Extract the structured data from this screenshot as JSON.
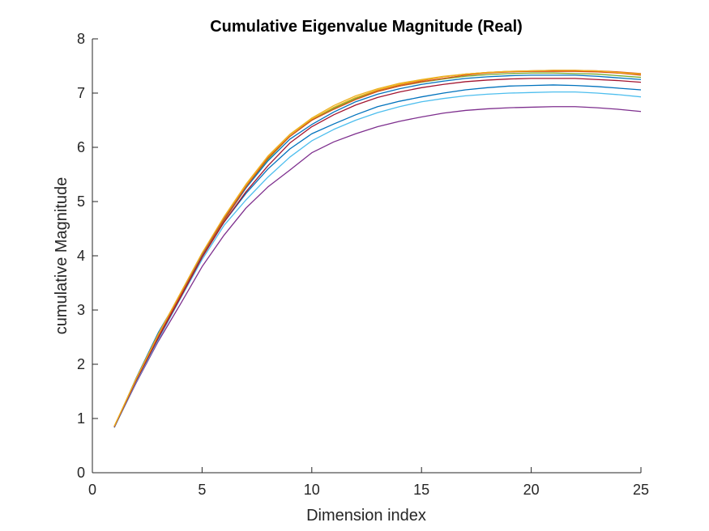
{
  "chart_data": {
    "type": "line",
    "title": "Cumulative Eigenvalue Magnitude (Real)",
    "xlabel": "Dimension index",
    "ylabel": "cumulative Magnitude",
    "xlim": [
      0,
      25
    ],
    "ylim": [
      0,
      8
    ],
    "xticks": [
      0,
      5,
      10,
      15,
      20,
      25
    ],
    "yticks": [
      0,
      1,
      2,
      3,
      4,
      5,
      6,
      7,
      8
    ],
    "grid": false,
    "box": false,
    "x": [
      1,
      2,
      3,
      4,
      5,
      6,
      7,
      8,
      9,
      10,
      11,
      12,
      13,
      14,
      15,
      16,
      17,
      18,
      19,
      20,
      21,
      22,
      23,
      24,
      25
    ],
    "series": [
      {
        "color": "#0072BD",
        "values": [
          0.84,
          1.75,
          2.58,
          3.27,
          4.0,
          4.62,
          5.15,
          5.6,
          5.97,
          6.25,
          6.43,
          6.6,
          6.75,
          6.85,
          6.93,
          7.0,
          7.06,
          7.1,
          7.13,
          7.14,
          7.15,
          7.14,
          7.12,
          7.09,
          7.06
        ]
      },
      {
        "color": "#D95319",
        "values": [
          0.85,
          1.7,
          2.5,
          3.25,
          4.0,
          4.65,
          5.25,
          5.8,
          6.2,
          6.5,
          6.72,
          6.9,
          7.05,
          7.15,
          7.23,
          7.3,
          7.35,
          7.38,
          7.4,
          7.41,
          7.42,
          7.42,
          7.41,
          7.39,
          7.36
        ]
      },
      {
        "color": "#EDB120",
        "values": [
          0.86,
          1.72,
          2.55,
          3.3,
          4.05,
          4.7,
          5.3,
          5.82,
          6.23,
          6.52,
          6.74,
          6.92,
          7.06,
          7.16,
          7.24,
          7.3,
          7.35,
          7.38,
          7.4,
          7.41,
          7.41,
          7.41,
          7.4,
          7.37,
          7.34
        ]
      },
      {
        "color": "#7E2F8E",
        "values": [
          0.84,
          1.66,
          2.42,
          3.1,
          3.8,
          4.38,
          4.88,
          5.27,
          5.58,
          5.9,
          6.1,
          6.25,
          6.38,
          6.48,
          6.56,
          6.63,
          6.68,
          6.71,
          6.73,
          6.74,
          6.75,
          6.75,
          6.73,
          6.7,
          6.66
        ]
      },
      {
        "color": "#77AC30",
        "values": [
          0.85,
          1.72,
          2.52,
          3.28,
          4.02,
          4.67,
          5.27,
          5.78,
          6.2,
          6.5,
          6.72,
          6.9,
          7.03,
          7.13,
          7.2,
          7.26,
          7.31,
          7.34,
          7.36,
          7.37,
          7.37,
          7.36,
          7.35,
          7.32,
          7.29
        ]
      },
      {
        "color": "#4DBEEE",
        "values": [
          0.83,
          1.68,
          2.45,
          3.2,
          3.93,
          4.56,
          5.03,
          5.45,
          5.82,
          6.12,
          6.33,
          6.5,
          6.64,
          6.75,
          6.84,
          6.9,
          6.95,
          6.98,
          7.0,
          7.01,
          7.02,
          7.02,
          7.0,
          6.97,
          6.93
        ]
      },
      {
        "color": "#A2142F",
        "values": [
          0.84,
          1.7,
          2.48,
          3.22,
          3.97,
          4.62,
          5.18,
          5.66,
          6.08,
          6.38,
          6.6,
          6.78,
          6.92,
          7.02,
          7.1,
          7.16,
          7.21,
          7.24,
          7.26,
          7.27,
          7.27,
          7.27,
          7.25,
          7.23,
          7.2
        ]
      },
      {
        "color": "#0072BD",
        "values": [
          0.85,
          1.73,
          2.52,
          3.28,
          4.02,
          4.68,
          5.25,
          5.75,
          6.15,
          6.42,
          6.65,
          6.84,
          6.98,
          7.08,
          7.16,
          7.22,
          7.27,
          7.3,
          7.32,
          7.33,
          7.33,
          7.33,
          7.31,
          7.28,
          7.25
        ]
      },
      {
        "color": "#D95319",
        "values": [
          0.85,
          1.72,
          2.52,
          3.28,
          4.03,
          4.68,
          5.27,
          5.8,
          6.2,
          6.5,
          6.7,
          6.88,
          7.03,
          7.13,
          7.21,
          7.27,
          7.33,
          7.37,
          7.39,
          7.4,
          7.4,
          7.4,
          7.39,
          7.37,
          7.33
        ]
      },
      {
        "color": "#EDB120",
        "values": [
          0.86,
          1.74,
          2.55,
          3.3,
          4.05,
          4.72,
          5.32,
          5.84,
          6.24,
          6.54,
          6.77,
          6.95,
          7.08,
          7.18,
          7.25,
          7.31,
          7.35,
          7.38,
          7.4,
          7.41,
          7.42,
          7.42,
          7.41,
          7.38,
          7.35
        ]
      }
    ]
  }
}
